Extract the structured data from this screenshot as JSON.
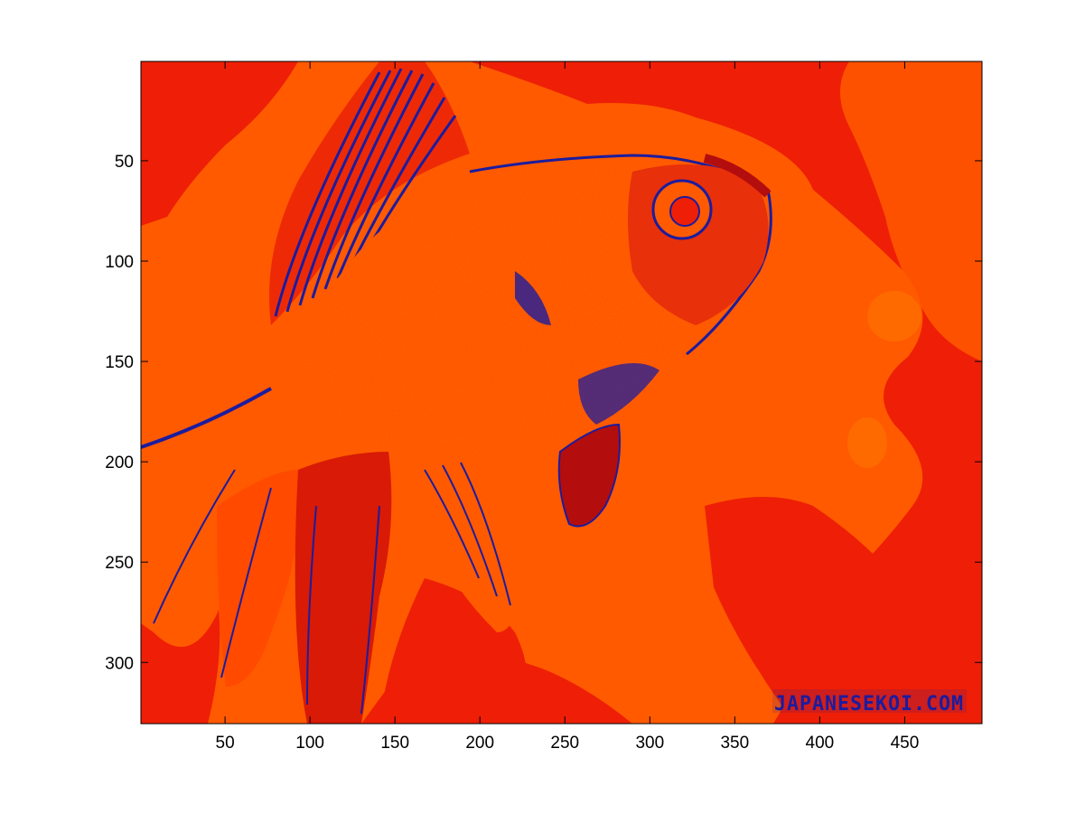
{
  "image": {
    "subject": "goldfish",
    "colormap_colors": {
      "background_red": "#ee1f06",
      "mid_orange": "#ff5a00",
      "dark_red": "#b40d0d",
      "outline_blue": "#1c1c9e"
    }
  },
  "axes": {
    "x_ticks": [
      {
        "value": 50,
        "label": "50"
      },
      {
        "value": 100,
        "label": "100"
      },
      {
        "value": 150,
        "label": "150"
      },
      {
        "value": 200,
        "label": "200"
      },
      {
        "value": 250,
        "label": "250"
      },
      {
        "value": 300,
        "label": "300"
      },
      {
        "value": 350,
        "label": "350"
      },
      {
        "value": 400,
        "label": "400"
      },
      {
        "value": 450,
        "label": "450"
      }
    ],
    "y_ticks": [
      {
        "value": 50,
        "label": "50"
      },
      {
        "value": 100,
        "label": "100"
      },
      {
        "value": 150,
        "label": "150"
      },
      {
        "value": 200,
        "label": "200"
      },
      {
        "value": 250,
        "label": "250"
      },
      {
        "value": 300,
        "label": "300"
      }
    ],
    "xlim": [
      0.5,
      495.5
    ],
    "ylim": [
      0.5,
      330.5
    ],
    "y_direction": "reverse"
  }
}
